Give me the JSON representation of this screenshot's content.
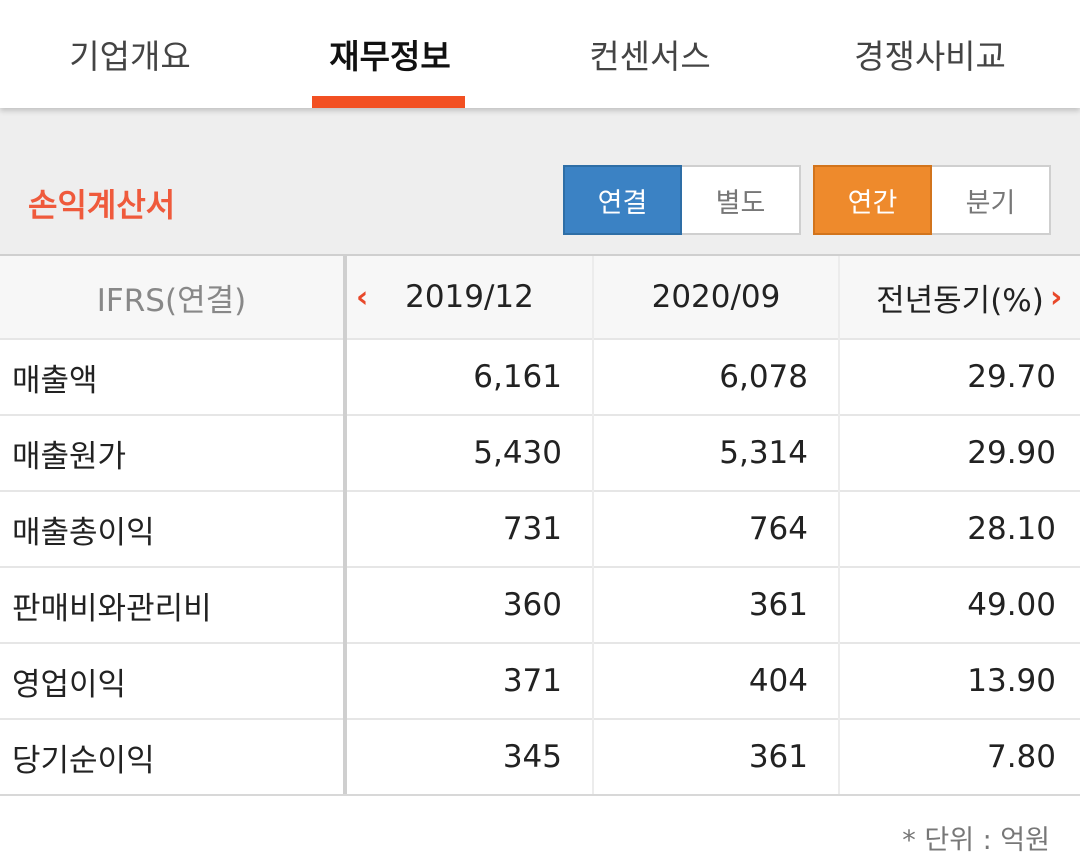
{
  "tabs": [
    "기업개요",
    "재무정보",
    "컨센서스",
    "경쟁사비교"
  ],
  "section": {
    "title": "손익계산서",
    "toggle_scope": [
      "연결",
      "별도"
    ],
    "toggle_period": [
      "연간",
      "분기"
    ]
  },
  "table": {
    "header": [
      "IFRS(연결)",
      "2019/12",
      "2020/09",
      "전년동기(%)"
    ],
    "rows": [
      [
        "매출액",
        "6,161",
        "6,078",
        "29.70"
      ],
      [
        "매출원가",
        "5,430",
        "5,314",
        "29.90"
      ],
      [
        "매출총이익",
        "731",
        "764",
        "28.10"
      ],
      [
        "판매비와관리비",
        "360",
        "361",
        "49.00"
      ],
      [
        "영업이익",
        "371",
        "404",
        "13.90"
      ],
      [
        "당기순이익",
        "345",
        "361",
        "7.80"
      ]
    ]
  },
  "unit_note": "* 단위 : 억원",
  "colors": {
    "accent": "#f25022",
    "blue": "#3b82c4",
    "orange": "#ee8a2c"
  }
}
